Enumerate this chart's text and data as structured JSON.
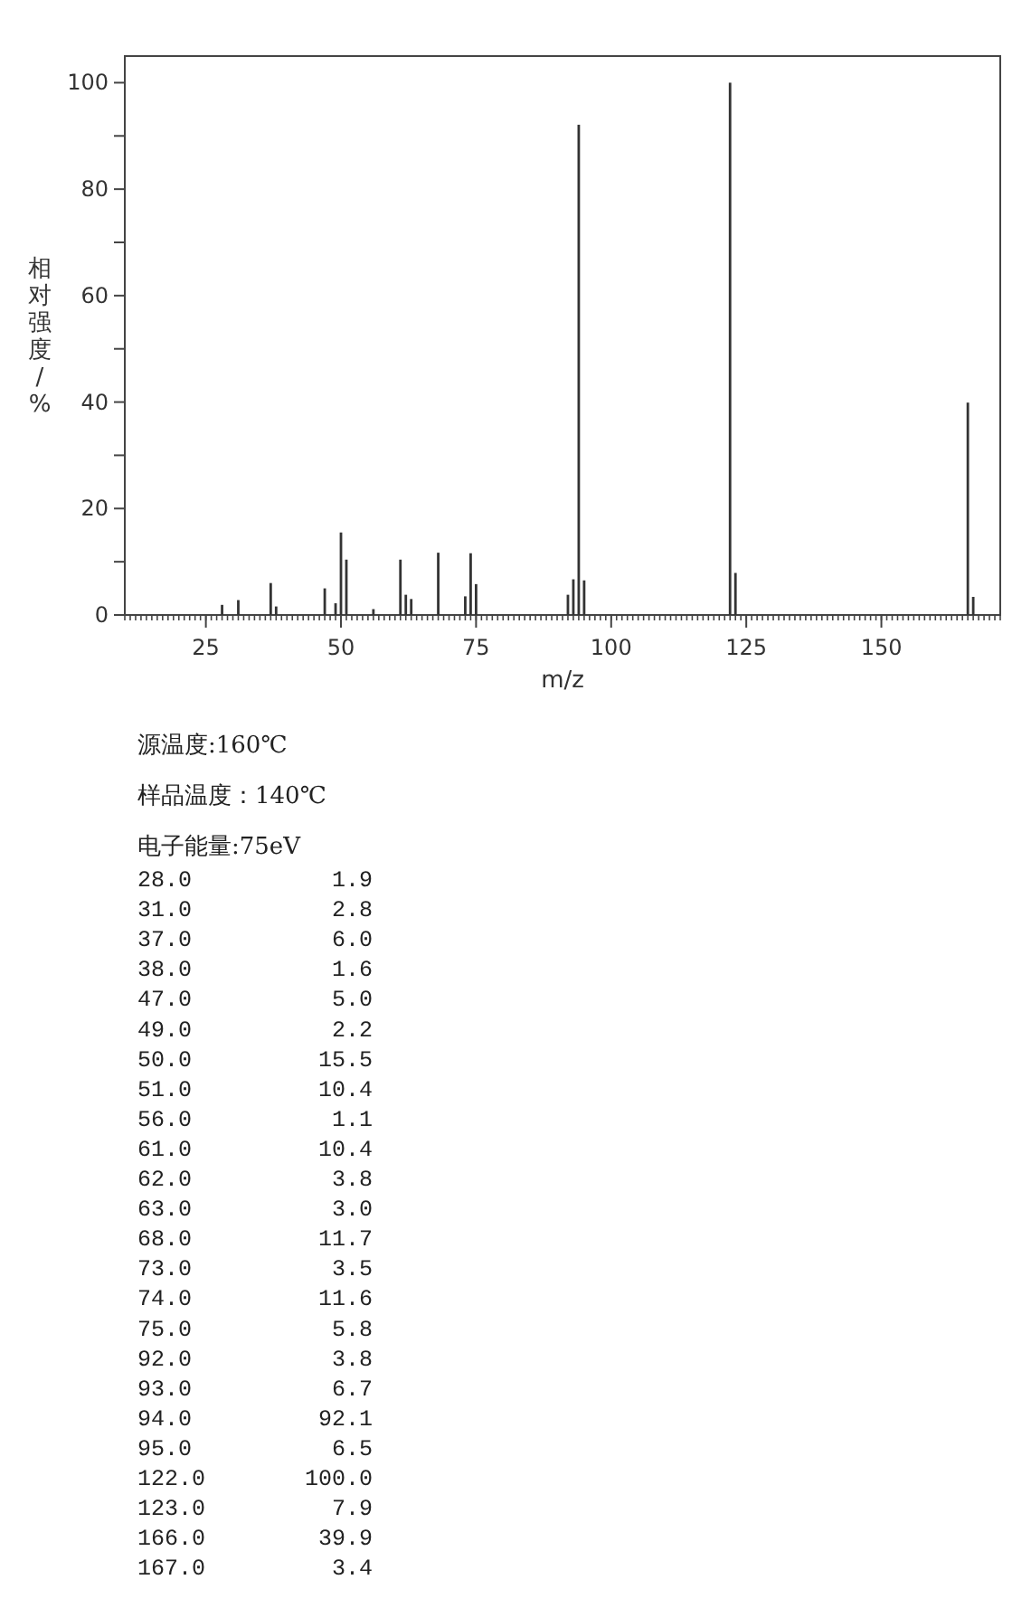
{
  "chart_data": {
    "type": "bar",
    "xlabel": "m/z",
    "ylabel": "相对强度/%",
    "x": [
      28,
      31,
      37,
      38,
      47,
      49,
      50,
      51,
      56,
      61,
      62,
      63,
      68,
      73,
      74,
      75,
      92,
      93,
      94,
      95,
      122,
      123,
      166,
      167
    ],
    "values": [
      1.9,
      2.8,
      6.0,
      1.6,
      5.0,
      2.2,
      15.5,
      10.4,
      1.1,
      10.4,
      3.8,
      3.0,
      11.7,
      3.5,
      11.6,
      5.8,
      3.8,
      6.7,
      92.1,
      6.5,
      100.0,
      7.9,
      39.9,
      3.4
    ],
    "color": "#333333",
    "xlim": [
      10,
      172
    ],
    "ylim": [
      0,
      105
    ],
    "xticks": [
      25,
      50,
      75,
      100,
      125,
      150
    ],
    "yticks": [
      0,
      {
        "value": 10,
        "label": null
      },
      20,
      {
        "value": 30,
        "label": null
      },
      40,
      {
        "value": 50,
        "label": null
      },
      60,
      {
        "value": 70,
        "label": null
      },
      80,
      {
        "value": 90,
        "label": null
      },
      100
    ],
    "annotations": [
      "源温度:160℃",
      "样品温度：140℃",
      "电子能量:75eV",
      "28.0",
      "1.9",
      "31.0",
      "2.8",
      "37.0",
      "6.0",
      "38.0",
      "1.6",
      "47.0",
      "5.0",
      "49.0",
      "2.2",
      "50.0",
      "15.5",
      "51.0",
      "10.4",
      "56.0",
      "1.1",
      "61.0",
      "10.4",
      "62.0",
      "3.8",
      "63.0",
      "3.0",
      "68.0",
      "11.7",
      "73.0",
      "3.5",
      "74.0",
      "11.6",
      "75.0",
      "5.8",
      "92.0",
      "3.8",
      "93.0",
      "6.7",
      "94.0",
      "92.1",
      "95.0",
      "6.5",
      "122.0",
      "100.0",
      "123.0",
      "7.9",
      "166.0",
      "39.9",
      "167.0",
      "3.4"
    ]
  }
}
